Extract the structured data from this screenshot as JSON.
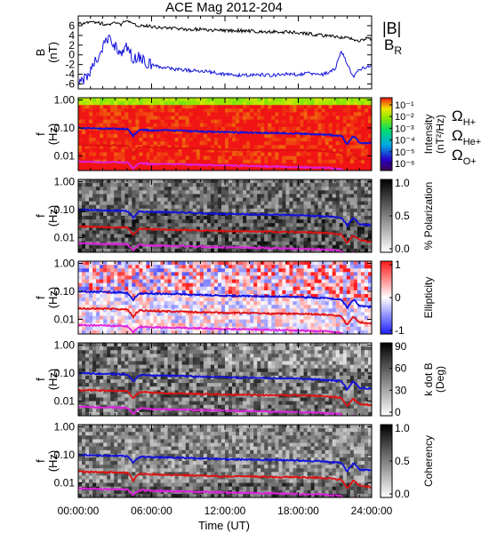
{
  "chart_data": {
    "type": "line",
    "title": "ACE Mag 2012-204",
    "xlabel": "Time (UT)",
    "x_ticks": [
      "00:00:00",
      "06:00:00",
      "12:00:00",
      "18:00:00",
      "24:00:00"
    ],
    "x_range_hours": [
      0,
      24
    ],
    "colors": {
      "black": "#000000",
      "blue": "#1010dd",
      "red": "#e01010",
      "magenta": "#e020e0"
    },
    "panels": [
      {
        "kind": "line",
        "ylabel": "B (nT)",
        "y_ticks": [
          "6",
          "4",
          "2",
          "0",
          "-2",
          "-4",
          "-6"
        ],
        "ylim": [
          -7,
          8
        ],
        "legend": [
          {
            "label": "|B|",
            "color": "#000000"
          },
          {
            "label": "B",
            "sub": "R",
            "color": "#1010dd"
          }
        ],
        "series": [
          {
            "name": "|B|",
            "color": "#000000",
            "x": [
              0,
              0.5,
              1,
              1.5,
              2,
              2.5,
              3,
              3.5,
              4,
              4.5,
              5,
              5.5,
              6,
              7,
              8,
              9,
              10,
              11,
              12,
              13,
              14,
              15,
              16,
              17,
              18,
              19,
              20,
              20.5,
              21,
              21.5,
              22,
              22.5,
              23,
              23.5,
              24
            ],
            "y": [
              6.3,
              6.6,
              7.0,
              6.7,
              6.4,
              6.2,
              6.5,
              6.3,
              7.0,
              6.2,
              6.0,
              6.1,
              5.8,
              5.6,
              5.4,
              5.2,
              5.3,
              5.1,
              5.0,
              5.0,
              4.9,
              4.8,
              4.8,
              4.7,
              4.5,
              4.3,
              4.0,
              3.8,
              3.8,
              3.6,
              3.5,
              3.3,
              2.8,
              3.4,
              3.2
            ]
          },
          {
            "name": "B",
            "color": "#1010dd",
            "x": [
              0,
              0.5,
              1,
              1.5,
              2,
              2.5,
              3,
              3.5,
              4,
              4.5,
              5,
              5.5,
              6,
              7,
              8,
              9,
              10,
              11,
              12,
              13,
              14,
              15,
              16,
              17,
              18,
              19,
              20,
              20.5,
              21,
              21.5,
              22,
              22.5,
              23,
              23.5,
              24
            ],
            "y": [
              -5.5,
              -4.8,
              -3.5,
              -1.0,
              1.5,
              3.5,
              2.0,
              0.0,
              1.8,
              -1.0,
              -0.5,
              -1.5,
              -2.0,
              -2.6,
              -3.0,
              -3.2,
              -3.4,
              -3.6,
              -4.0,
              -4.2,
              -4.2,
              -4.1,
              -4.2,
              -4.0,
              -4.0,
              -3.8,
              -4.0,
              -3.6,
              -3.0,
              1.0,
              -2.0,
              -4.5,
              -3.0,
              -2.5,
              -2.2
            ]
          }
        ]
      },
      {
        "kind": "spectrogram",
        "palette": "rainbow",
        "ylabel": "f (Hz)",
        "y_ticks": [
          "1.00",
          "0.10",
          "0.01"
        ],
        "colorbar_label": "Intensity (nT²/Hz)",
        "colorbar_ticks": [
          "10⁻¹",
          "10⁻²",
          "10⁻³",
          "10⁻⁴",
          "10⁻⁵",
          "10⁻⁶"
        ],
        "colorbar_range_log10": [
          -6.5,
          -0.5
        ],
        "legend": [
          {
            "label": "Ω",
            "sub": "H+",
            "color": "#1010dd"
          },
          {
            "label": "Ω",
            "sub": "He+",
            "color": "#e01010"
          },
          {
            "label": "Ω",
            "sub": "O+",
            "color": "#e020e0"
          }
        ]
      },
      {
        "kind": "spectrogram",
        "palette": "gray",
        "ylabel": "f (Hz)",
        "y_ticks": [
          "1.00",
          "0.10",
          "0.01"
        ],
        "colorbar_label": "% Polarization",
        "colorbar_ticks": [
          "1.0",
          "0.5",
          "0.0"
        ],
        "colorbar_range": [
          0,
          1
        ]
      },
      {
        "kind": "spectrogram",
        "palette": "bluewhitered",
        "ylabel": "f (Hz)",
        "y_ticks": [
          "1.00",
          "0.10",
          "0.01"
        ],
        "colorbar_label": "Ellipticity",
        "colorbar_ticks": [
          "1",
          "0",
          "-1"
        ],
        "colorbar_range": [
          -1,
          1
        ]
      },
      {
        "kind": "spectrogram",
        "palette": "gray",
        "ylabel": "f (Hz)",
        "y_ticks": [
          "1.00",
          "0.10",
          "0.01"
        ],
        "colorbar_label": "k dot B (Deg)",
        "colorbar_ticks": [
          "90",
          "60",
          "30",
          "0"
        ],
        "colorbar_range": [
          0,
          90
        ]
      },
      {
        "kind": "spectrogram",
        "palette": "gray",
        "ylabel": "f (Hz)",
        "y_ticks": [
          "1.00",
          "0.10",
          "0.01"
        ],
        "colorbar_label": "Coherency",
        "colorbar_ticks": [
          "1.0",
          "0.5",
          "0.0"
        ],
        "colorbar_range": [
          0,
          1
        ]
      }
    ],
    "gyrofrequency_lines": {
      "x": [
        0,
        2,
        4,
        4.5,
        5,
        6,
        8,
        10,
        12,
        14,
        16,
        18,
        20,
        21.5,
        22,
        22.5,
        23,
        24
      ],
      "H+": [
        0.1,
        0.095,
        0.09,
        0.05,
        0.085,
        0.083,
        0.08,
        0.075,
        0.07,
        0.068,
        0.066,
        0.063,
        0.058,
        0.052,
        0.025,
        0.05,
        0.03,
        0.028
      ],
      "He+": [
        0.025,
        0.024,
        0.023,
        0.012,
        0.021,
        0.02,
        0.019,
        0.018,
        0.017,
        0.017,
        0.016,
        0.016,
        0.015,
        0.013,
        0.006,
        0.012,
        0.008,
        0.007
      ],
      "O+": [
        0.0063,
        0.006,
        0.0058,
        0.0035,
        0.0055,
        0.0052,
        0.005,
        0.0048,
        0.0045,
        0.0044,
        0.0042,
        0.004,
        0.0038,
        0.0034,
        0.002,
        0.003,
        0.0022,
        0.0021
      ]
    }
  }
}
